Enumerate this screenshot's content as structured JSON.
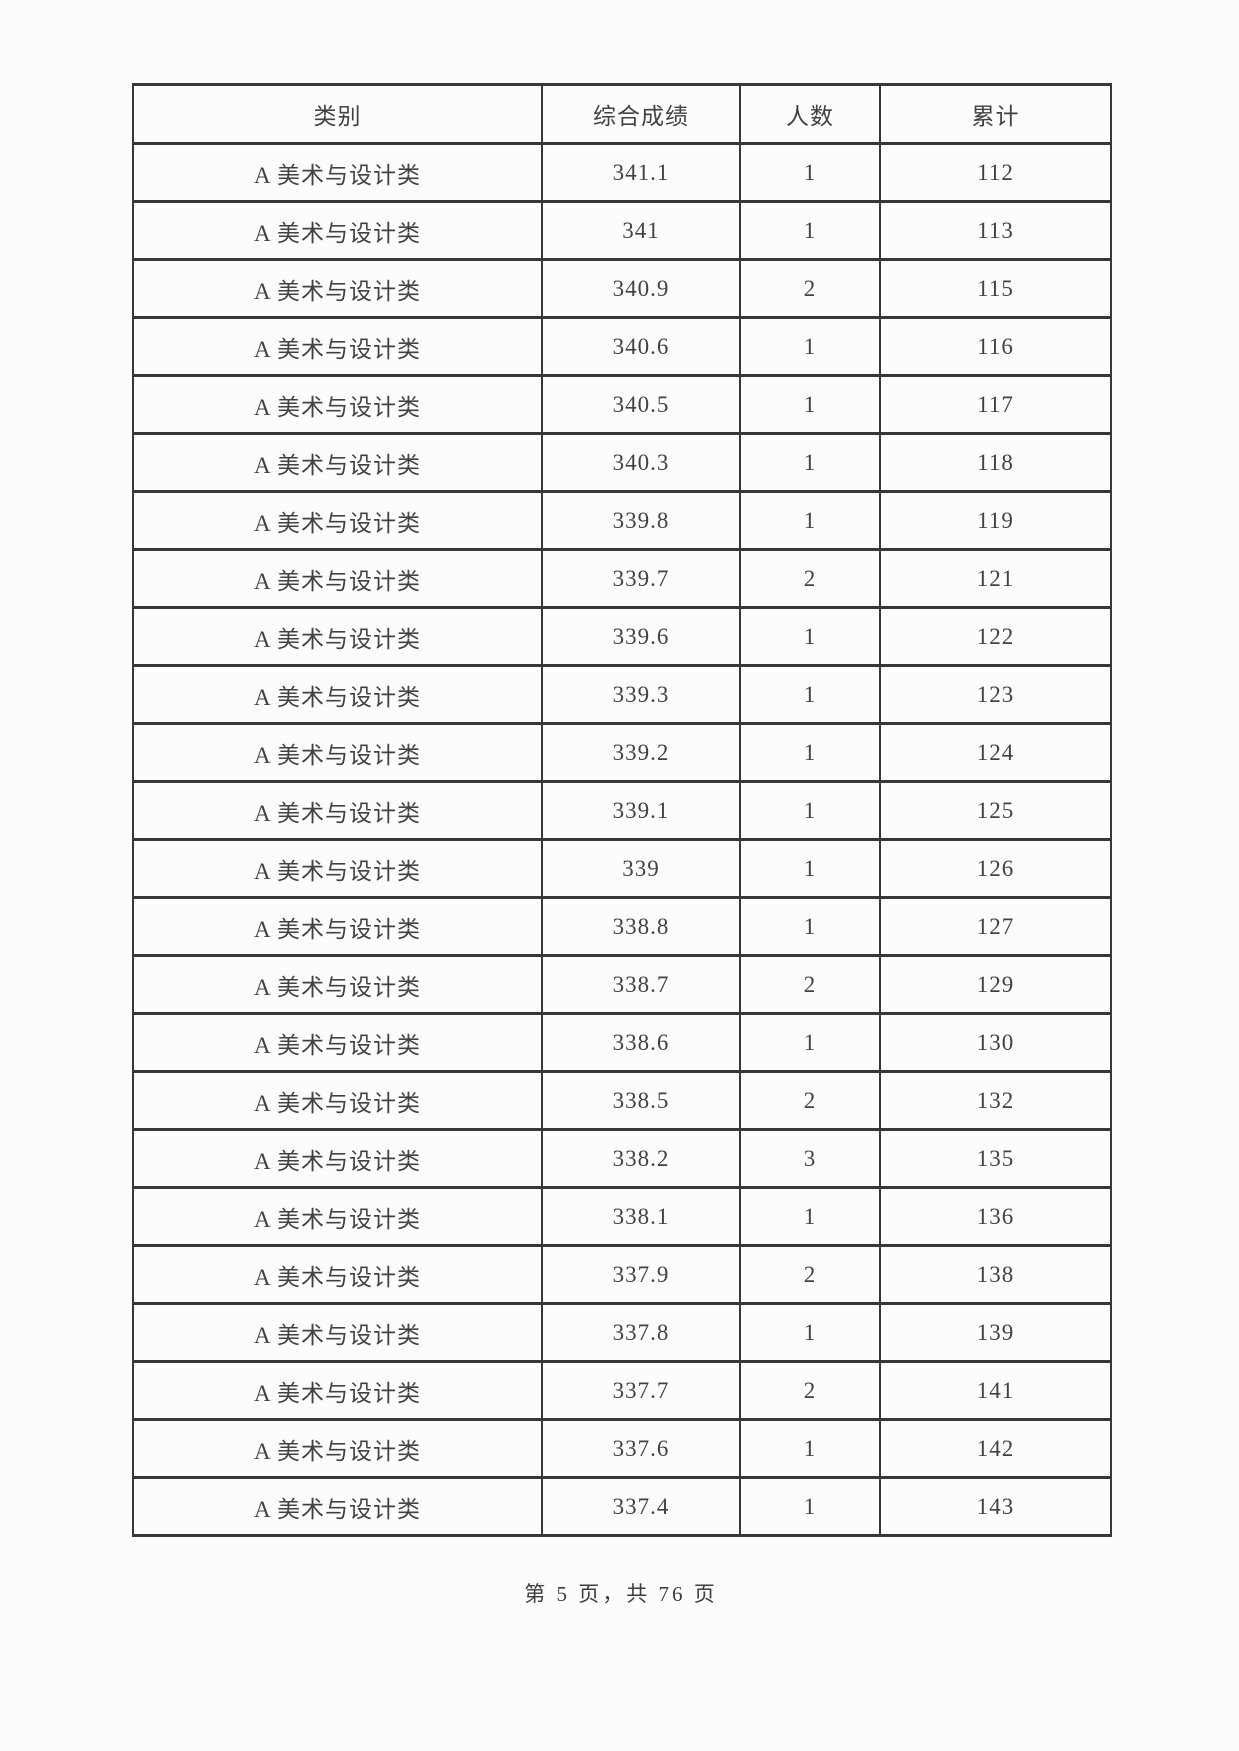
{
  "page": {
    "background": "#fcfcfc",
    "text_color": "#3d3d3d",
    "border_color": "#383838"
  },
  "table": {
    "columns": {
      "category": "类别",
      "score": "综合成绩",
      "count": "人数",
      "cumulative": "累计"
    },
    "row_keys": [
      "category",
      "score",
      "count",
      "cumulative"
    ],
    "rows": [
      {
        "category": "A 美术与设计类",
        "score": "341.1",
        "count": "1",
        "cumulative": "112"
      },
      {
        "category": "A 美术与设计类",
        "score": "341",
        "count": "1",
        "cumulative": "113"
      },
      {
        "category": "A 美术与设计类",
        "score": "340.9",
        "count": "2",
        "cumulative": "115"
      },
      {
        "category": "A 美术与设计类",
        "score": "340.6",
        "count": "1",
        "cumulative": "116"
      },
      {
        "category": "A 美术与设计类",
        "score": "340.5",
        "count": "1",
        "cumulative": "117"
      },
      {
        "category": "A 美术与设计类",
        "score": "340.3",
        "count": "1",
        "cumulative": "118"
      },
      {
        "category": "A 美术与设计类",
        "score": "339.8",
        "count": "1",
        "cumulative": "119"
      },
      {
        "category": "A 美术与设计类",
        "score": "339.7",
        "count": "2",
        "cumulative": "121"
      },
      {
        "category": "A 美术与设计类",
        "score": "339.6",
        "count": "1",
        "cumulative": "122"
      },
      {
        "category": "A 美术与设计类",
        "score": "339.3",
        "count": "1",
        "cumulative": "123"
      },
      {
        "category": "A 美术与设计类",
        "score": "339.2",
        "count": "1",
        "cumulative": "124"
      },
      {
        "category": "A 美术与设计类",
        "score": "339.1",
        "count": "1",
        "cumulative": "125"
      },
      {
        "category": "A 美术与设计类",
        "score": "339",
        "count": "1",
        "cumulative": "126"
      },
      {
        "category": "A 美术与设计类",
        "score": "338.8",
        "count": "1",
        "cumulative": "127"
      },
      {
        "category": "A 美术与设计类",
        "score": "338.7",
        "count": "2",
        "cumulative": "129"
      },
      {
        "category": "A 美术与设计类",
        "score": "338.6",
        "count": "1",
        "cumulative": "130"
      },
      {
        "category": "A 美术与设计类",
        "score": "338.5",
        "count": "2",
        "cumulative": "132"
      },
      {
        "category": "A 美术与设计类",
        "score": "338.2",
        "count": "3",
        "cumulative": "135"
      },
      {
        "category": "A 美术与设计类",
        "score": "338.1",
        "count": "1",
        "cumulative": "136"
      },
      {
        "category": "A 美术与设计类",
        "score": "337.9",
        "count": "2",
        "cumulative": "138"
      },
      {
        "category": "A 美术与设计类",
        "score": "337.8",
        "count": "1",
        "cumulative": "139"
      },
      {
        "category": "A 美术与设计类",
        "score": "337.7",
        "count": "2",
        "cumulative": "141"
      },
      {
        "category": "A 美术与设计类",
        "score": "337.6",
        "count": "1",
        "cumulative": "142"
      },
      {
        "category": "A 美术与设计类",
        "score": "337.4",
        "count": "1",
        "cumulative": "143"
      }
    ]
  },
  "footer": {
    "page_label": "第 5 页，共 76 页"
  }
}
